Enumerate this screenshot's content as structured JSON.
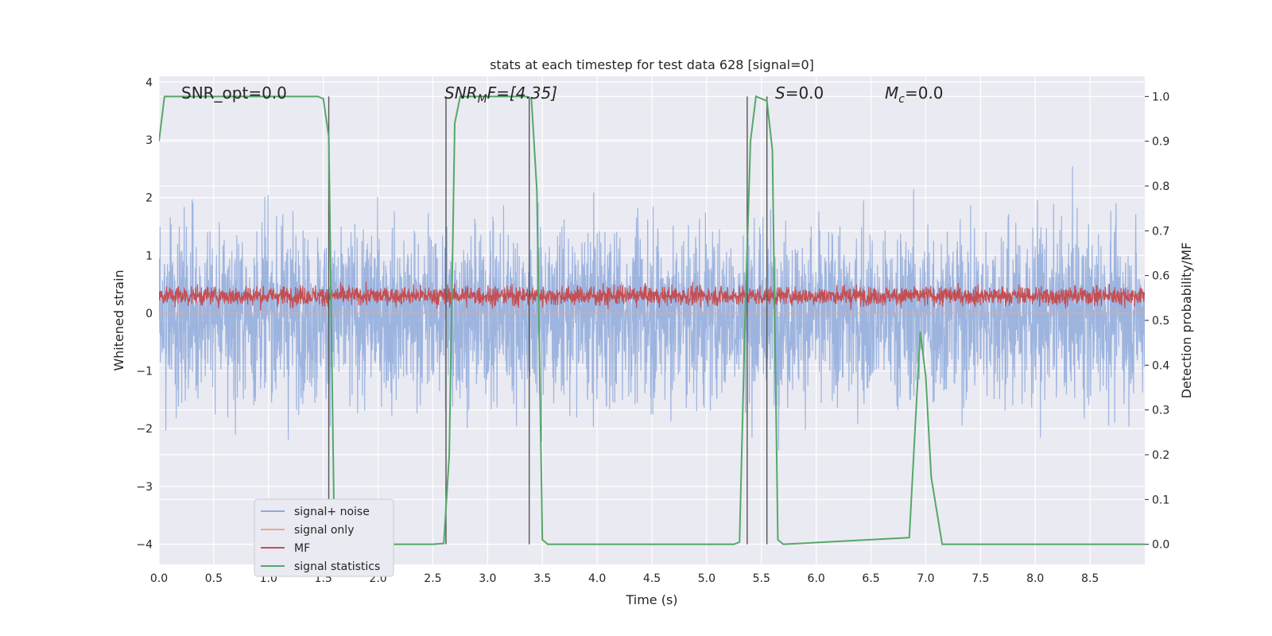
{
  "chart_data": {
    "type": "line",
    "title": "stats at each timestep for test data 628 [signal=0]",
    "xlabel": "Time (s)",
    "ylabel": "Whitened strain",
    "ylabel_right": "Detection probability/MF",
    "xlim": [
      0.0,
      9.0
    ],
    "ylim": [
      -4.35,
      4.1
    ],
    "ylim_right": [
      -0.045,
      1.045
    ],
    "x_ticks": [
      "0.0",
      "0.5",
      "1.0",
      "1.5",
      "2.0",
      "2.5",
      "3.0",
      "3.5",
      "4.0",
      "4.5",
      "5.0",
      "5.5",
      "6.0",
      "6.5",
      "7.0",
      "7.5",
      "8.0",
      "8.5"
    ],
    "y_ticks": [
      "4",
      "3",
      "2",
      "1",
      "0",
      "−1",
      "−2",
      "−3",
      "−4"
    ],
    "y_ticks_right": [
      "1.0",
      "0.9",
      "0.8",
      "0.7",
      "0.6",
      "0.5",
      "0.4",
      "0.3",
      "0.2",
      "0.1",
      "0.0"
    ],
    "grid": true,
    "legend_position": "lower-left",
    "annotations": {
      "snr_opt": "SNR_opt=0.0",
      "snr_mf_base": "SNR",
      "snr_mf_sub": "M",
      "snr_mf_rest": "F=[4.35]",
      "s_sym": "S",
      "s_val": "=0.0",
      "mc_sym": "M",
      "mc_sub": "c",
      "mc_val": "=0.0"
    },
    "series": [
      {
        "name": "signal+ noise",
        "color": "#8faadc",
        "note_amplitude": 3.0
      },
      {
        "name": "signal only",
        "color": "#e8a788"
      },
      {
        "name": "MF",
        "color": "#c44e52"
      },
      {
        "name": "signal statistics",
        "color": "#55a868",
        "x": [
          0.0,
          0.05,
          0.1,
          1.45,
          1.5,
          1.55,
          1.6,
          1.65,
          2.5,
          2.6,
          2.65,
          2.7,
          2.75,
          3.35,
          3.4,
          3.45,
          3.5,
          3.55,
          5.25,
          5.3,
          5.35,
          5.4,
          5.45,
          5.55,
          5.6,
          5.65,
          5.7,
          6.85,
          6.95,
          7.0,
          7.05,
          7.15,
          9.0
        ],
        "y": [
          0.9,
          1.0,
          1.0,
          1.0,
          0.995,
          0.91,
          0.03,
          0.0,
          0.0,
          0.002,
          0.2,
          0.94,
          1.0,
          1.0,
          0.995,
          0.79,
          0.01,
          0.0,
          0.0,
          0.005,
          0.5,
          0.9,
          1.0,
          0.99,
          0.88,
          0.01,
          0.0,
          0.015,
          0.475,
          0.375,
          0.15,
          0.0,
          0.0
        ]
      }
    ],
    "vertical_markers": [
      1.55,
      2.62,
      3.38,
      5.37,
      5.55
    ]
  }
}
